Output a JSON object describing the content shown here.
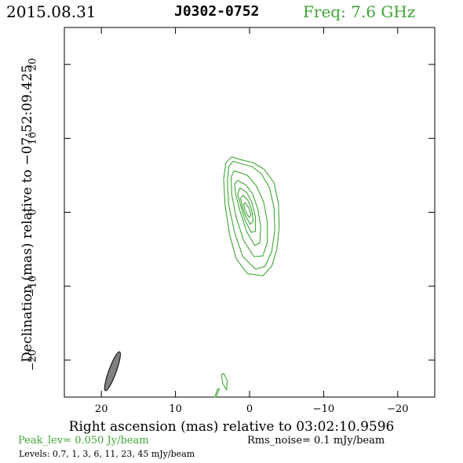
{
  "header": {
    "date": "2015.08.31",
    "source": "J0302-0752",
    "frequency": "Freq: 7.6 GHz"
  },
  "footer": {
    "peak": "Peak_lev=  0.050 Jy/beam",
    "rms": "Rms_noise=   0.1 mJy/beam",
    "levels": "Levels: 0.7,    1,    3,    6,   11,   23,   45  mJy/beam"
  },
  "colors": {
    "contour": "#3fa535",
    "beam": "#808080"
  },
  "chart_data": {
    "type": "contour",
    "xlabel": "Right ascension (mas) relative to 03:02:10.9596",
    "ylabel": "Declination (mas) relative to −07:52:09.425",
    "xlim": [
      25,
      -25
    ],
    "ylim": [
      -25,
      25
    ],
    "x_ticks": [
      20,
      10,
      0,
      -10,
      -20
    ],
    "y_ticks": [
      20,
      10,
      0,
      -10,
      -20
    ],
    "x_tick_labels": [
      "20",
      "10",
      "0",
      "−10",
      "−20"
    ],
    "y_tick_labels": [
      "20",
      "10",
      "0",
      "−10",
      "−20"
    ],
    "levels_mJy": [
      0.7,
      1,
      3,
      6,
      11,
      23,
      45
    ],
    "peak_Jy_per_beam": 0.05,
    "rms_mJy_per_beam": 0.1,
    "contours": [
      {
        "level": 0.7,
        "points": [
          [
            1.5,
            7.2
          ],
          [
            -0.5,
            6.7
          ],
          [
            -2.0,
            5.8
          ],
          [
            -3.3,
            4.0
          ],
          [
            -3.9,
            1.2
          ],
          [
            -4.0,
            -2.0
          ],
          [
            -3.7,
            -5.0
          ],
          [
            -3.0,
            -7.3
          ],
          [
            -1.8,
            -8.6
          ],
          [
            0.3,
            -8.3
          ],
          [
            1.8,
            -6.3
          ],
          [
            2.7,
            -3.0
          ],
          [
            3.3,
            1.0
          ],
          [
            3.5,
            4.5
          ],
          [
            3.2,
            6.7
          ],
          [
            2.4,
            7.5
          ]
        ]
      },
      {
        "level": 1,
        "points": [
          [
            1.6,
            6.7
          ],
          [
            -0.3,
            6.2
          ],
          [
            -1.6,
            5.2
          ],
          [
            -2.7,
            3.3
          ],
          [
            -3.3,
            0.6
          ],
          [
            -3.4,
            -2.5
          ],
          [
            -3.0,
            -5.3
          ],
          [
            -2.1,
            -7.3
          ],
          [
            -0.8,
            -7.7
          ],
          [
            0.9,
            -6.0
          ],
          [
            2.0,
            -2.8
          ],
          [
            2.8,
            0.9
          ],
          [
            3.0,
            4.1
          ],
          [
            2.8,
            6.2
          ],
          [
            2.2,
            6.9
          ]
        ]
      },
      {
        "level": 3,
        "points": [
          [
            1.7,
            5.5
          ],
          [
            0.3,
            5.0
          ],
          [
            -0.9,
            3.6
          ],
          [
            -1.9,
            1.4
          ],
          [
            -2.4,
            -1.3
          ],
          [
            -2.4,
            -4.0
          ],
          [
            -1.8,
            -5.9
          ],
          [
            -0.6,
            -6.0
          ],
          [
            0.8,
            -3.8
          ],
          [
            1.8,
            -0.7
          ],
          [
            2.4,
            2.4
          ],
          [
            2.5,
            4.7
          ],
          [
            2.1,
            5.6
          ]
        ]
      },
      {
        "level": 6,
        "points": [
          [
            1.6,
            4.3
          ],
          [
            0.5,
            3.7
          ],
          [
            -0.4,
            2.5
          ],
          [
            -1.1,
            0.5
          ],
          [
            -1.5,
            -1.9
          ],
          [
            -1.4,
            -4.1
          ],
          [
            -0.7,
            -4.5
          ],
          [
            0.4,
            -2.6
          ],
          [
            1.3,
            0.2
          ],
          [
            1.9,
            2.5
          ],
          [
            2.0,
            3.9
          ]
        ]
      },
      {
        "level": 11,
        "points": [
          [
            1.3,
            3.3
          ],
          [
            0.4,
            2.7
          ],
          [
            -0.3,
            1.4
          ],
          [
            -0.8,
            -0.6
          ],
          [
            -0.8,
            -2.6
          ],
          [
            -0.2,
            -2.7
          ],
          [
            0.6,
            -1.1
          ],
          [
            1.2,
            0.9
          ],
          [
            1.6,
            2.5
          ]
        ]
      },
      {
        "level": 23,
        "points": [
          [
            0.9,
            2.3
          ],
          [
            0.2,
            1.6
          ],
          [
            -0.3,
            0.3
          ],
          [
            -0.5,
            -1.2
          ],
          [
            -0.1,
            -1.6
          ],
          [
            0.5,
            -0.6
          ],
          [
            1.0,
            0.8
          ],
          [
            1.2,
            1.9
          ]
        ]
      },
      {
        "level": 45,
        "points": [
          [
            0.6,
            1.3
          ],
          [
            0.1,
            0.6
          ],
          [
            -0.2,
            -0.3
          ],
          [
            0.0,
            -0.7
          ],
          [
            0.4,
            -0.2
          ],
          [
            0.7,
            0.6
          ],
          [
            0.8,
            1.1
          ]
        ]
      }
    ],
    "noise_contours": [
      {
        "level": 0.7,
        "points": [
          [
            3.5,
            -21.8
          ],
          [
            3.0,
            -22.8
          ],
          [
            3.1,
            -24.0
          ],
          [
            3.6,
            -23.2
          ],
          [
            3.8,
            -22.0
          ]
        ]
      },
      {
        "level": 0.7,
        "points": [
          [
            4.3,
            -23.9
          ],
          [
            4.7,
            -25.0
          ],
          [
            4.5,
            -25.0
          ],
          [
            4.1,
            -23.9
          ]
        ]
      }
    ],
    "beam": {
      "x": 18.5,
      "y": -21.5,
      "major_mas": 5.6,
      "minor_mas": 1.0,
      "pa_deg": 20
    }
  }
}
